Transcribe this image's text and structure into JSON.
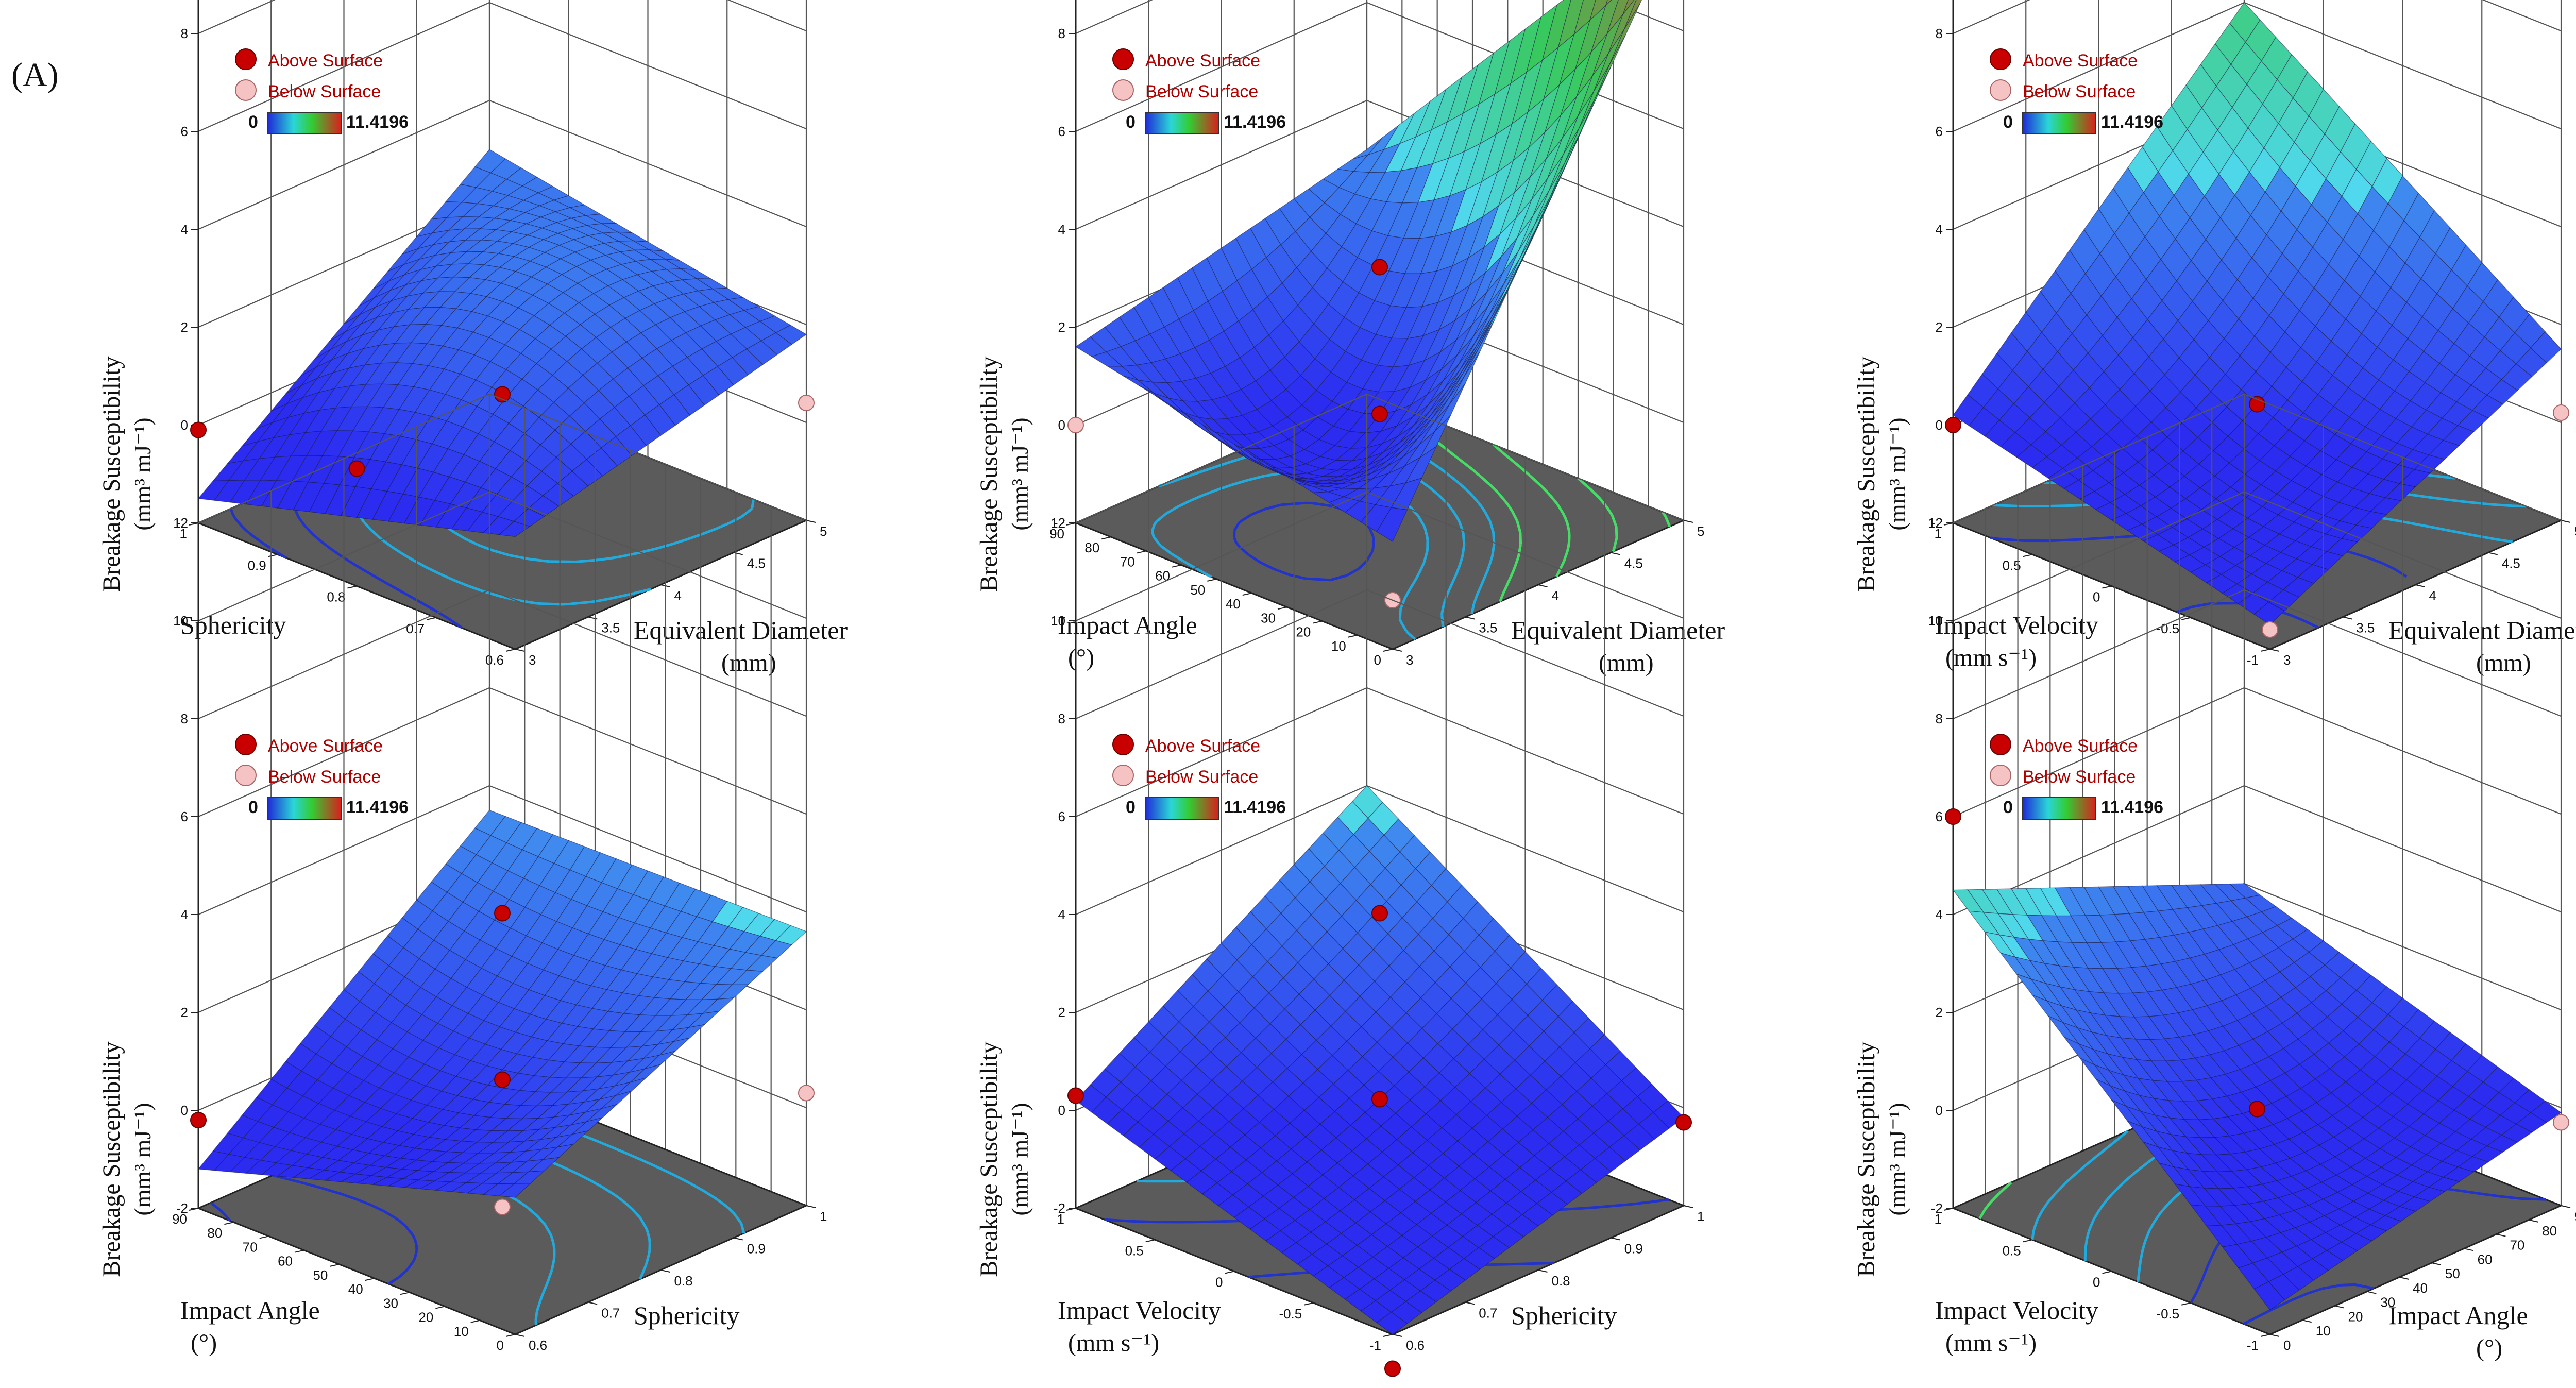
{
  "figure": {
    "panel_label": "(A)"
  },
  "legend": {
    "above": "Above Surface",
    "below": "Below Surface",
    "scale_min": "0",
    "scale_max": "11.4196"
  },
  "colors": {
    "surface_low": "#2c2cf0",
    "surface_mid": "#4fd8ee",
    "surface_high": "#38c95c",
    "contour_low": "#2233cc",
    "contour_mid": "#22aadd",
    "contour_high": "#44dd66",
    "floor": "#5b5b5b",
    "above_point": "#c80000",
    "below_point": "#f5c3c3",
    "grid": "#555555"
  },
  "chart_data": [
    {
      "type": "surface3d",
      "zlabel": "Breakage Susceptibility",
      "zunit": "(mm³ mJ⁻¹)",
      "zticks": [
        "-2",
        "0",
        "2",
        "4",
        "6",
        "8",
        "10",
        "12"
      ],
      "xlabel": "Equivalent Diameter",
      "xunit": "(mm)",
      "xticks": [
        "3",
        "3.5",
        "4",
        "4.5",
        "5"
      ],
      "ylabel": "Sphericity",
      "yunit": "",
      "yticks": [
        "0.6",
        "0.7",
        "0.8",
        "0.9",
        "1"
      ],
      "corners": {
        "front": 0.3,
        "right": 1.8,
        "back": 3.0,
        "left": -1.5
      },
      "center": 2.5,
      "points_above": [
        [
          0.0,
          0.5,
          0.4
        ],
        [
          0.0,
          1.0,
          -0.1
        ],
        [
          0.5,
          0.5,
          0.6
        ]
      ],
      "points_below": [
        [
          1.0,
          0.0,
          0.4
        ]
      ]
    },
    {
      "type": "surface3d",
      "zlabel": "Breakage Susceptibility",
      "zunit": "(mm³ mJ⁻¹)",
      "zticks": [
        "-2",
        "0",
        "2",
        "4",
        "6",
        "8",
        "10",
        "12"
      ],
      "xlabel": "Equivalent Diameter",
      "xunit": "(mm)",
      "xticks": [
        "3",
        "3.5",
        "4",
        "4.5",
        "5"
      ],
      "ylabel": "Impact Angle",
      "yunit": "(°)",
      "yticks": [
        "0",
        "10",
        "20",
        "30",
        "40",
        "50",
        "60",
        "70",
        "80",
        "90"
      ],
      "corners": {
        "front": 0.2,
        "right": 10.5,
        "back": 3.0,
        "left": 1.6
      },
      "center": 0.2,
      "points_above": [
        [
          0.5,
          0.5,
          3.2
        ],
        [
          0.5,
          0.5,
          0.2
        ],
        [
          1.0,
          1.0,
          11.4
        ]
      ],
      "points_below": [
        [
          0.0,
          1.0,
          0.0
        ],
        [
          0.0,
          0.0,
          -1.0
        ]
      ]
    },
    {
      "type": "surface3d",
      "zlabel": "Breakage Susceptibility",
      "zunit": "(mm³ mJ⁻¹)",
      "zticks": [
        "-2",
        "0",
        "2",
        "4",
        "6",
        "8",
        "10",
        "12"
      ],
      "xlabel": "Equivalent Diameter",
      "xunit": "(mm)",
      "xticks": [
        "3",
        "3.5",
        "4",
        "4.5",
        "5"
      ],
      "ylabel": "Impact Velocity",
      "yunit": "(mm s⁻¹)",
      "yticks": [
        "-1",
        "-0.5",
        "0",
        "0.5",
        "1"
      ],
      "corners": {
        "front": -1.5,
        "right": 1.5,
        "back": 6.0,
        "left": 0.2
      },
      "center": 0.4,
      "points_above": [
        [
          0.0,
          1.0,
          0.0
        ],
        [
          0.5,
          0.5,
          0.4
        ]
      ],
      "points_below": [
        [
          1.0,
          0.0,
          0.2
        ],
        [
          0.0,
          0.0,
          -1.6
        ]
      ]
    },
    {
      "type": "surface3d",
      "zlabel": "Breakage Susceptibility",
      "zunit": "(mm³ mJ⁻¹)",
      "zticks": [
        "-2",
        "0",
        "2",
        "4",
        "6",
        "8",
        "10",
        "12"
      ],
      "xlabel": "Sphericity",
      "xunit": "",
      "xticks": [
        "0.6",
        "0.7",
        "0.8",
        "0.9",
        "1"
      ],
      "ylabel": "Impact Angle",
      "yunit": "(°)",
      "yticks": [
        "0",
        "10",
        "20",
        "30",
        "40",
        "50",
        "60",
        "70",
        "80",
        "90"
      ],
      "corners": {
        "front": 0.8,
        "right": 3.6,
        "back": 3.5,
        "left": -1.2
      },
      "center": 0.8,
      "points_above": [
        [
          0.0,
          1.0,
          -0.2
        ],
        [
          0.5,
          0.5,
          0.6
        ],
        [
          0.5,
          0.5,
          4.0
        ]
      ],
      "points_below": [
        [
          1.0,
          0.0,
          0.3
        ],
        [
          0.5,
          0.5,
          -2.0
        ]
      ]
    },
    {
      "type": "surface3d",
      "zlabel": "Breakage Susceptibility",
      "zunit": "(mm³ mJ⁻¹)",
      "zticks": [
        "-2",
        "0",
        "2",
        "4",
        "6",
        "8",
        "10",
        "12"
      ],
      "xlabel": "Sphericity",
      "xunit": "",
      "xticks": [
        "0.6",
        "0.7",
        "0.8",
        "0.9",
        "1"
      ],
      "ylabel": "Impact Velocity",
      "yunit": "(mm s⁻¹)",
      "yticks": [
        "-1",
        "-0.5",
        "0",
        "0.5",
        "1"
      ],
      "corners": {
        "front": -2.0,
        "right": -0.2,
        "back": 4.0,
        "left": 0.2
      },
      "center": 0.2,
      "points_above": [
        [
          0.0,
          1.0,
          0.3
        ],
        [
          0.5,
          0.5,
          0.2
        ],
        [
          1.0,
          0.0,
          -0.3
        ],
        [
          0.5,
          0.5,
          4.0
        ],
        [
          0.0,
          0.0,
          -2.7
        ]
      ],
      "points_below": []
    },
    {
      "type": "surface3d",
      "zlabel": "Breakage Susceptibility",
      "zunit": "(mm³ mJ⁻¹)",
      "zticks": [
        "-2",
        "0",
        "2",
        "4",
        "6",
        "8",
        "10",
        "12"
      ],
      "xlabel": "Impact Angle",
      "xunit": "(°)",
      "xticks": [
        "0",
        "10",
        "20",
        "30",
        "40",
        "50",
        "60",
        "70",
        "80",
        "90"
      ],
      "ylabel": "Impact Velocity",
      "yunit": "(mm s⁻¹)",
      "yticks": [
        "-1",
        "-0.5",
        "0",
        "0.5",
        "1"
      ],
      "corners": {
        "front": -1.5,
        "right": -0.1,
        "back": 2.0,
        "left": 4.5
      },
      "center": 0.0,
      "points_above": [
        [
          0.0,
          1.0,
          6.0
        ],
        [
          0.5,
          0.5,
          0.0
        ]
      ],
      "points_below": [
        [
          1.0,
          0.0,
          -0.3
        ]
      ]
    }
  ]
}
